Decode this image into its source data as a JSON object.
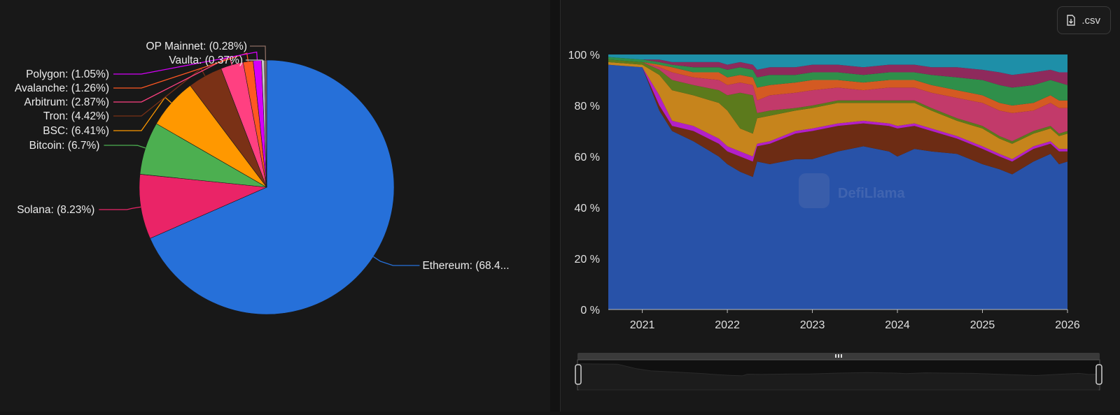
{
  "brand": {
    "watermark": "DefiLlama"
  },
  "toolbar": {
    "csv_label": ".csv",
    "csv_icon": "file-download-icon"
  },
  "chart_data": [
    {
      "type": "pie",
      "slices": [
        {
          "label": "Ethereum: (68.4...",
          "name": "Ethereum",
          "value": 68.4,
          "color": "#2670d9"
        },
        {
          "label": "Solana: (8.23%)",
          "name": "Solana",
          "value": 8.23,
          "color": "#ea2467"
        },
        {
          "label": "Bitcoin: (6.7%)",
          "name": "Bitcoin",
          "value": 6.7,
          "color": "#4caf50"
        },
        {
          "label": "BSC: (6.41%)",
          "name": "BSC",
          "value": 6.41,
          "color": "#ff9800"
        },
        {
          "label": "Tron: (4.42%)",
          "name": "Tron",
          "value": 4.42,
          "color": "#7a3116"
        },
        {
          "label": "Arbitrum: (2.87%)",
          "name": "Arbitrum",
          "value": 2.87,
          "color": "#ff4081"
        },
        {
          "label": "Avalanche: (1.26%)",
          "name": "Avalanche",
          "value": 1.26,
          "color": "#ff5722"
        },
        {
          "label": "Polygon: (1.05%)",
          "name": "Polygon",
          "value": 1.05,
          "color": "#d500f9"
        },
        {
          "label": "Vaulta: (0.37%)",
          "name": "Vaulta",
          "value": 0.37,
          "color": "#c8c8c8"
        },
        {
          "label": "OP Mainnet: (0.28%)",
          "name": "OP Mainnet",
          "value": 0.28,
          "color": "#8d6e63"
        }
      ]
    },
    {
      "type": "area",
      "stacked": "percent",
      "ylim": [
        0,
        100
      ],
      "yticks": [
        "0 %",
        "20 %",
        "40 %",
        "60 %",
        "80 %",
        "100 %"
      ],
      "x": [
        "2020.6",
        "2021.0",
        "2021.2",
        "2021.35",
        "2021.6",
        "2021.9",
        "2022.0",
        "2022.15",
        "2022.3",
        "2022.35",
        "2022.5",
        "2022.8",
        "2023.0",
        "2023.3",
        "2023.6",
        "2023.9",
        "2024.0",
        "2024.2",
        "2024.4",
        "2024.7",
        "2025.0",
        "2025.2",
        "2025.35",
        "2025.6",
        "2025.8",
        "2025.9",
        "2026.0"
      ],
      "xticks": [
        "2021",
        "2022",
        "2023",
        "2024",
        "2025",
        "2026"
      ],
      "series": [
        {
          "color": "#2852a8",
          "values": [
            96,
            95,
            78,
            70,
            66,
            60,
            57,
            54,
            52,
            58,
            57,
            59,
            59,
            62,
            64,
            62,
            60,
            63,
            62,
            61,
            57,
            55,
            53,
            58,
            61,
            57,
            58
          ]
        },
        {
          "color": "#6d2c14",
          "values": [
            0,
            0,
            2,
            2,
            4,
            5,
            5,
            6,
            6,
            6,
            8,
            10,
            11,
            10,
            9,
            10,
            11,
            9,
            8,
            6,
            6,
            5,
            5,
            5,
            4,
            5,
            4
          ]
        },
        {
          "color": "#b320c8",
          "values": [
            0,
            0,
            4,
            2,
            2,
            2,
            2,
            2,
            2,
            1,
            1,
            1,
            1,
            1,
            1,
            1,
            1,
            1,
            1,
            1,
            1,
            1,
            1,
            1,
            1,
            1,
            1
          ]
        },
        {
          "color": "#c6841c",
          "values": [
            1,
            1,
            8,
            12,
            12,
            14,
            14,
            9,
            9,
            10,
            10,
            8,
            8,
            8,
            7,
            8,
            9,
            8,
            7,
            6,
            7,
            6,
            6,
            5,
            5,
            5,
            6
          ]
        },
        {
          "color": "#5c7a1c",
          "values": [
            1,
            1,
            2,
            4,
            4,
            5,
            6,
            14,
            15,
            2,
            2,
            1,
            1,
            1,
            1,
            1,
            1,
            1,
            1,
            1,
            1,
            1,
            1,
            1,
            1,
            1,
            1
          ]
        },
        {
          "color": "#c23a6a",
          "values": [
            0,
            0,
            1,
            3,
            3,
            4,
            4,
            4,
            4,
            5,
            6,
            6,
            6,
            5,
            4,
            5,
            5,
            5,
            6,
            8,
            9,
            10,
            11,
            8,
            9,
            10,
            9
          ]
        },
        {
          "color": "#d45a22",
          "values": [
            0,
            0,
            1,
            2,
            2,
            3,
            3,
            3,
            3,
            5,
            4,
            4,
            4,
            3,
            3,
            3,
            3,
            3,
            3,
            3,
            3,
            3,
            3,
            3,
            3,
            3,
            3
          ]
        },
        {
          "color": "#2f8f4a",
          "values": [
            1,
            1,
            1,
            1,
            2,
            2,
            3,
            3,
            3,
            4,
            4,
            3,
            3,
            3,
            3,
            3,
            3,
            3,
            4,
            5,
            6,
            7,
            7,
            7,
            6,
            7,
            6
          ]
        },
        {
          "color": "#8e2a5c",
          "values": [
            0,
            0,
            1,
            1,
            2,
            2,
            2,
            2,
            2,
            3,
            3,
            3,
            3,
            3,
            3,
            3,
            3,
            3,
            3,
            4,
            4,
            5,
            5,
            5,
            4,
            4,
            5
          ]
        },
        {
          "color": "#1e8fa8",
          "values": [
            1,
            2,
            2,
            3,
            3,
            3,
            4,
            3,
            4,
            6,
            5,
            5,
            4,
            4,
            5,
            4,
            4,
            4,
            5,
            5,
            6,
            7,
            8,
            7,
            6,
            7,
            7
          ]
        }
      ]
    }
  ]
}
